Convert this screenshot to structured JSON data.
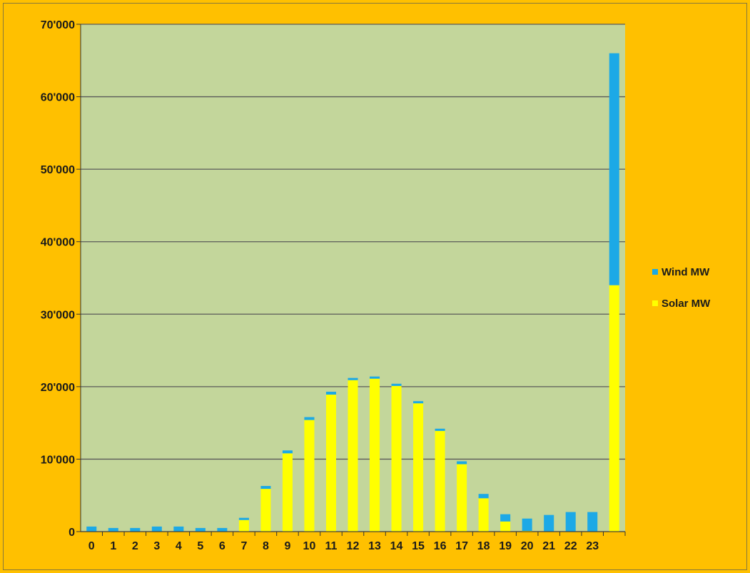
{
  "chart_data": {
    "type": "bar",
    "stacked": true,
    "categories": [
      "0",
      "1",
      "2",
      "3",
      "4",
      "5",
      "6",
      "7",
      "8",
      "9",
      "10",
      "11",
      "12",
      "13",
      "14",
      "15",
      "16",
      "17",
      "18",
      "19",
      "20",
      "21",
      "22",
      "23",
      ""
    ],
    "series": [
      {
        "name": "Solar MW",
        "color": "#FFFF00",
        "values": [
          0,
          0,
          0,
          0,
          0,
          0,
          0,
          1600,
          5900,
          10800,
          15400,
          18900,
          20900,
          21100,
          20100,
          17700,
          13900,
          9300,
          4600,
          1400,
          100,
          0,
          0,
          0,
          34000
        ]
      },
      {
        "name": "Wind MW",
        "color": "#1CA9E6",
        "values": [
          700,
          500,
          500,
          700,
          700,
          500,
          500,
          300,
          400,
          400,
          400,
          400,
          300,
          300,
          300,
          300,
          300,
          400,
          600,
          1000,
          1700,
          2300,
          2700,
          2700,
          32000
        ]
      }
    ],
    "yticks": [
      "0",
      "10'000",
      "20'000",
      "30'000",
      "40'000",
      "50'000",
      "60'000",
      "70'000"
    ],
    "ylim": [
      0,
      70000
    ],
    "grid": true,
    "legend_position": "right",
    "colors": {
      "page_bg": "#FFC000",
      "plot_bg": "#C3D69B",
      "grid": "#5a5a5a"
    }
  }
}
